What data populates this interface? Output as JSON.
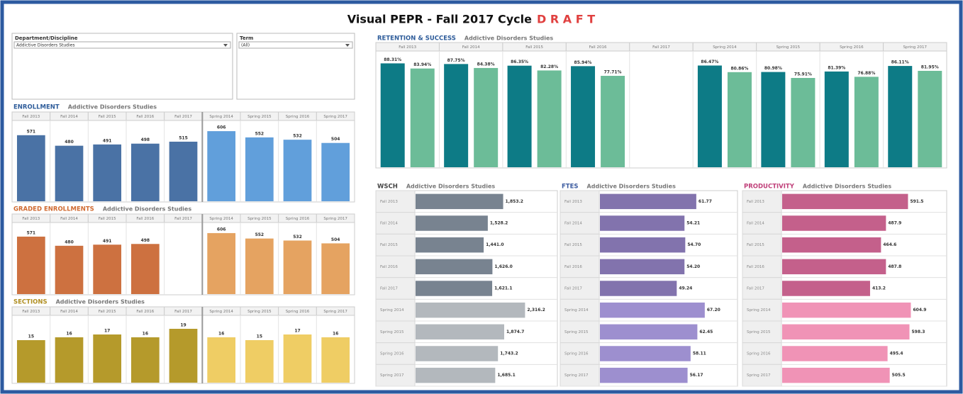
{
  "header": {
    "title": "Visual PEPR - Fall 2017 Cycle",
    "draft": "D R A F T"
  },
  "filters": [
    {
      "label": "Department/Discipline",
      "value": "Addictive Disorders Studies"
    },
    {
      "label": "Term",
      "value": "(All)"
    }
  ],
  "chart_data": [
    {
      "type": "bar",
      "title": "ENROLLMENT",
      "subtitle": "Addictive Disorders Studies",
      "title_color": "#2e5c9a",
      "categories": [
        "Fall 2013",
        "Fall 2014",
        "Fall 2015",
        "Fall 2016",
        "Fall 2017",
        "Spring 2014",
        "Spring 2015",
        "Spring 2016",
        "Spring 2017"
      ],
      "values": [
        571,
        480,
        491,
        498,
        515,
        606,
        552,
        532,
        504
      ],
      "colors": [
        "#4a72a5",
        "#4a72a5",
        "#4a72a5",
        "#4a72a5",
        "#4a72a5",
        "#619fdb",
        "#619fdb",
        "#619fdb",
        "#619fdb"
      ],
      "ylim": [
        0,
        680
      ]
    },
    {
      "type": "bar",
      "title": "GRADED ENROLLMENTS",
      "subtitle": "Addictive Disorders Studies",
      "title_color": "#d06a30",
      "categories": [
        "Fall 2013",
        "Fall 2014",
        "Fall 2015",
        "Fall 2016",
        "Fall 2017",
        "Spring 2014",
        "Spring 2015",
        "Spring 2016",
        "Spring 2017"
      ],
      "values": [
        571,
        480,
        491,
        498,
        null,
        606,
        552,
        532,
        504
      ],
      "colors": [
        "#cd7140",
        "#cd7140",
        "#cd7140",
        "#cd7140",
        "#cd7140",
        "#e5a361",
        "#e5a361",
        "#e5a361",
        "#e5a361"
      ],
      "ylim": [
        0,
        690
      ]
    },
    {
      "type": "bar",
      "title": "SECTIONS",
      "subtitle": "Addictive Disorders Studies",
      "title_color": "#b08f22",
      "categories": [
        "Fall 2013",
        "Fall 2014",
        "Fall 2015",
        "Fall 2016",
        "Fall 2017",
        "Spring 2014",
        "Spring 2015",
        "Spring 2016",
        "Spring 2017"
      ],
      "values": [
        15,
        16,
        17,
        16,
        19,
        16,
        15,
        17,
        16
      ],
      "colors": [
        "#b59a2b",
        "#b59a2b",
        "#b59a2b",
        "#b59a2b",
        "#b59a2b",
        "#efcd64",
        "#efcd64",
        "#efcd64",
        "#efcd64"
      ],
      "ylim": [
        0,
        23
      ]
    },
    {
      "type": "grouped_bar",
      "title": "RETENTION & SUCCESS",
      "subtitle": "Addictive Disorders Studies",
      "title_color": "#2e5c9a",
      "categories": [
        "Fall 2013",
        "Fall 2014",
        "Fall 2015",
        "Fall 2016",
        "Fall 2017",
        "Spring 2014",
        "Spring 2015",
        "Spring 2016",
        "Spring 2017"
      ],
      "series": [
        {
          "values": [
            88.31,
            87.75,
            86.35,
            85.94,
            null,
            86.47,
            80.98,
            81.39,
            86.11
          ],
          "value_labels": [
            "88.31%",
            "87.75%",
            "86.35%",
            "85.94%",
            null,
            "86.47%",
            "80.98%",
            "81.39%",
            "86.11%"
          ],
          "colors": [
            "#0d7b86",
            "#0d7b86",
            "#0d7b86",
            "#0d7b86",
            "#0d7b86",
            "#0d7b86",
            "#0d7b86",
            "#0d7b86",
            "#0d7b86"
          ]
        },
        {
          "values": [
            83.94,
            84.38,
            82.28,
            77.71,
            null,
            80.86,
            75.91,
            76.88,
            81.95
          ],
          "value_labels": [
            "83.94%",
            "84.38%",
            "82.28%",
            "77.71%",
            null,
            "80.86%",
            "75.91%",
            "76.88%",
            "81.95%"
          ],
          "colors": [
            "#6cbc98",
            "#6cbc98",
            "#6cbc98",
            "#6cbc98",
            "#6cbc98",
            "#6cbc98",
            "#6cbc98",
            "#6cbc98",
            "#6cbc98"
          ]
        }
      ],
      "ylim": [
        0,
        97
      ]
    },
    {
      "type": "barh",
      "title": "WSCH",
      "subtitle": "Addictive Disorders Studies",
      "title_color": "#444444",
      "categories": [
        "Fall 2013",
        "Fall 2014",
        "Fall 2015",
        "Fall 2016",
        "Fall 2017",
        "Spring 2014",
        "Spring 2015",
        "Spring 2016",
        "Spring 2017"
      ],
      "values": [
        1853.2,
        1528.2,
        1441.0,
        1626.0,
        1621.1,
        2316.2,
        1874.7,
        1743.2,
        1685.1
      ],
      "value_labels": [
        "1,853.2",
        "1,528.2",
        "1,441.0",
        "1,626.0",
        "1,621.1",
        "2,316.2",
        "1,874.7",
        "1,743.2",
        "1,685.1"
      ],
      "colors": [
        "#788390",
        "#788390",
        "#788390",
        "#788390",
        "#788390",
        "#b3b8bd",
        "#b3b8bd",
        "#b3b8bd",
        "#b3b8bd"
      ],
      "xlim": [
        0,
        2400
      ]
    },
    {
      "type": "barh",
      "title": "FTES",
      "subtitle": "Addictive Disorders Studies",
      "title_color": "#3b5ba0",
      "categories": [
        "Fall 2013",
        "Fall 2014",
        "Fall 2015",
        "Fall 2016",
        "Fall 2017",
        "Spring 2014",
        "Spring 2015",
        "Spring 2016",
        "Spring 2017"
      ],
      "values": [
        61.77,
        54.21,
        54.7,
        54.2,
        49.24,
        67.2,
        62.45,
        58.11,
        56.17
      ],
      "value_labels": [
        "61.77",
        "54.21",
        "54.70",
        "54.20",
        "49.24",
        "67.20",
        "62.45",
        "58.11",
        "56.17"
      ],
      "colors": [
        "#8273ad",
        "#8273ad",
        "#8273ad",
        "#8273ad",
        "#8273ad",
        "#9d8fcf",
        "#9d8fcf",
        "#9d8fcf",
        "#9d8fcf"
      ],
      "xlim": [
        0,
        70
      ]
    },
    {
      "type": "barh",
      "title": "PRODUCTIVITY",
      "subtitle": "Addictive Disorders Studies",
      "title_color": "#c0407a",
      "categories": [
        "Fall 2013",
        "Fall 2014",
        "Fall 2015",
        "Fall 2016",
        "Fall 2017",
        "Spring 2014",
        "Spring 2015",
        "Spring 2016",
        "Spring 2017"
      ],
      "values": [
        591.5,
        487.9,
        464.6,
        487.8,
        413.2,
        604.9,
        598.3,
        495.4,
        505.5
      ],
      "colors": [
        "#c4608b",
        "#c4608b",
        "#c4608b",
        "#c4608b",
        "#c4608b",
        "#f093b6",
        "#f093b6",
        "#f093b6",
        "#f093b6"
      ],
      "xlim": [
        0,
        640
      ]
    }
  ]
}
